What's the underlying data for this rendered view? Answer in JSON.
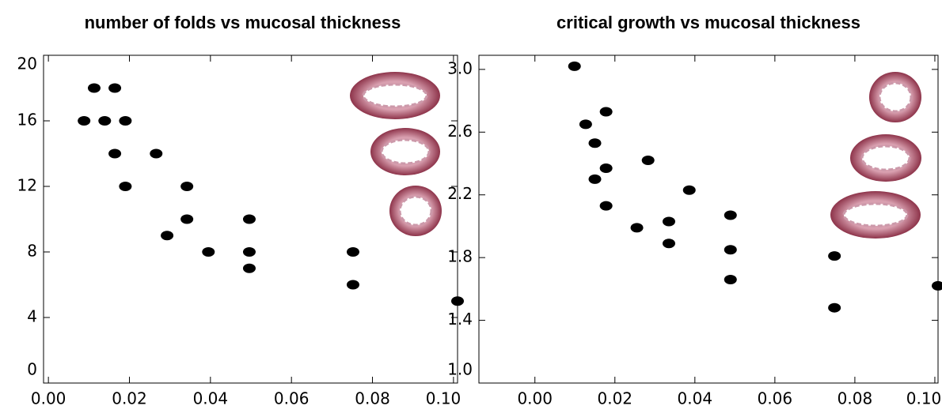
{
  "chart_data": [
    {
      "type": "scatter",
      "title": "number of folds vs mucosal thickness",
      "color": "#000000",
      "x": [
        0.0088,
        0.0113,
        0.0139,
        0.0164,
        0.0164,
        0.019,
        0.019,
        0.0266,
        0.0293,
        0.0342,
        0.0342,
        0.0395,
        0.0496,
        0.0496,
        0.0496,
        0.0752,
        0.0752,
        0.101
      ],
      "values": [
        16,
        18,
        16,
        18,
        14,
        16,
        12,
        14,
        9,
        12,
        10,
        8,
        10,
        8,
        7,
        8,
        6,
        5
      ],
      "xlim": [
        -0.0012,
        0.101
      ],
      "ylim": [
        0,
        20
      ],
      "xticks": [
        {
          "value": 0,
          "label": "0.00"
        },
        0.02,
        0.04,
        0.06,
        0.08,
        {
          "value": 0.1,
          "label": "0.10"
        }
      ],
      "yticks": [
        0,
        4,
        8,
        12,
        16,
        20
      ]
    },
    {
      "type": "scatter",
      "title": "critical growth vs mucosal thickness",
      "color": "#000000",
      "x": [
        0.0099,
        0.0127,
        0.015,
        0.0178,
        0.015,
        0.0178,
        0.0178,
        0.0255,
        0.0283,
        0.0335,
        0.0335,
        0.0386,
        0.0489,
        0.0489,
        0.0489,
        0.0749,
        0.0749,
        0.1008
      ],
      "values": [
        3.02,
        2.65,
        2.53,
        2.73,
        2.3,
        2.37,
        2.13,
        1.99,
        2.42,
        1.89,
        2.03,
        2.23,
        2.07,
        1.85,
        1.66,
        1.81,
        1.48,
        1.62
      ],
      "xlim": [
        -0.014,
        0.1008
      ],
      "ylim": [
        1.0,
        3.09
      ],
      "xticks": [
        {
          "value": 0,
          "label": "0.00"
        },
        0.02,
        0.04,
        0.06,
        0.08,
        {
          "value": 0.1,
          "label": "0.10"
        }
      ],
      "yticks": [
        {
          "value": 1,
          "label": "1.0"
        },
        1.4,
        1.8,
        2.2,
        2.6,
        {
          "value": 3,
          "label": "3.0"
        }
      ]
    }
  ]
}
